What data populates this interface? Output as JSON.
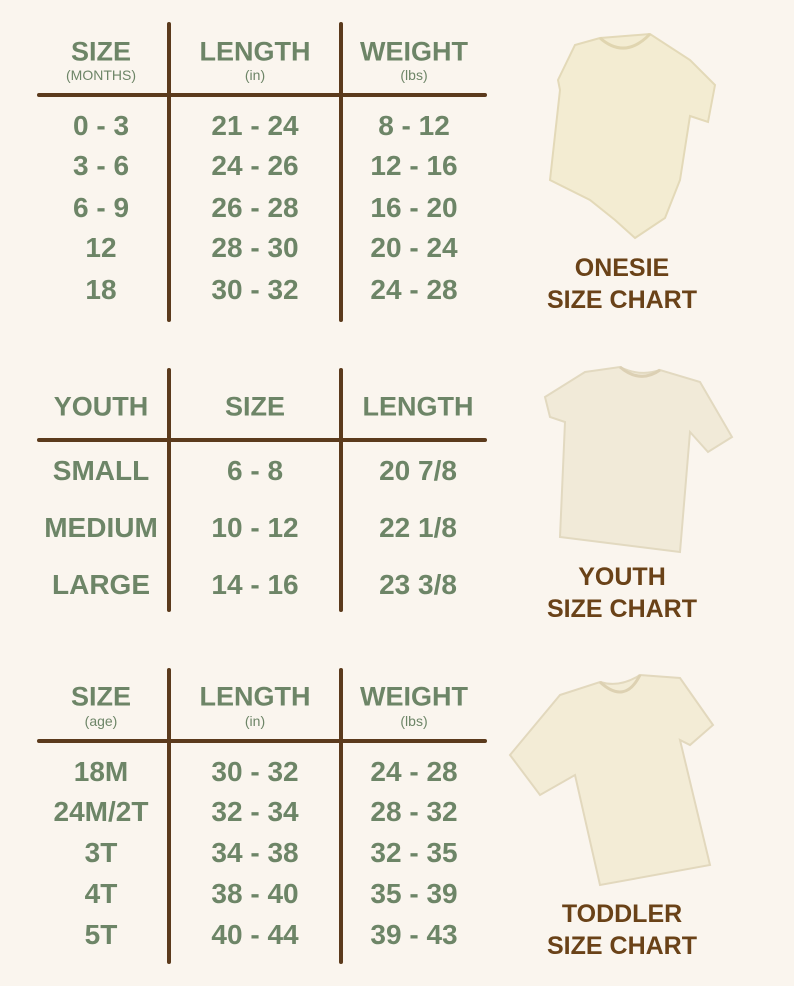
{
  "colors": {
    "background": "#faf5ee",
    "text_green": "#6d8567",
    "lines_brown": "#5b3a1c",
    "label_brown": "#6a4218"
  },
  "onesie": {
    "headers": [
      {
        "title": "SIZE",
        "unit": "(MONTHS)"
      },
      {
        "title": "LENGTH",
        "unit": "(in)"
      },
      {
        "title": "WEIGHT",
        "unit": "(lbs)"
      }
    ],
    "rows": [
      [
        "0 - 3",
        "21 - 24",
        "8 - 12"
      ],
      [
        "3 - 6",
        "24 - 26",
        "12 - 16"
      ],
      [
        "6 - 9",
        "26 - 28",
        "16 - 20"
      ],
      [
        "12",
        "28 - 30",
        "20 - 24"
      ],
      [
        "18",
        "30 - 32",
        "24 - 28"
      ]
    ],
    "label_line1": "ONESIE",
    "label_line2": "SIZE CHART"
  },
  "youth": {
    "headers": [
      {
        "title": "YOUTH"
      },
      {
        "title": "SIZE"
      },
      {
        "title": "LENGTH"
      }
    ],
    "rows": [
      [
        "SMALL",
        "6 - 8",
        "20 7/8"
      ],
      [
        "MEDIUM",
        "10 - 12",
        "22 1/8"
      ],
      [
        "LARGE",
        "14 - 16",
        "23 3/8"
      ]
    ],
    "label_line1": "YOUTH",
    "label_line2": "SIZE CHART"
  },
  "toddler": {
    "headers": [
      {
        "title": "SIZE",
        "unit": "(age)"
      },
      {
        "title": "LENGTH",
        "unit": "(in)"
      },
      {
        "title": "WEIGHT",
        "unit": "(lbs)"
      }
    ],
    "rows": [
      [
        "18M",
        "30 - 32",
        "24 - 28"
      ],
      [
        "24M/2T",
        "32 - 34",
        "28 - 32"
      ],
      [
        "3T",
        "34 - 38",
        "32 - 35"
      ],
      [
        "4T",
        "38 - 40",
        "35 - 39"
      ],
      [
        "5T",
        "40 - 44",
        "39 - 43"
      ]
    ],
    "label_line1": "TODDLER",
    "label_line2": "SIZE CHART"
  }
}
